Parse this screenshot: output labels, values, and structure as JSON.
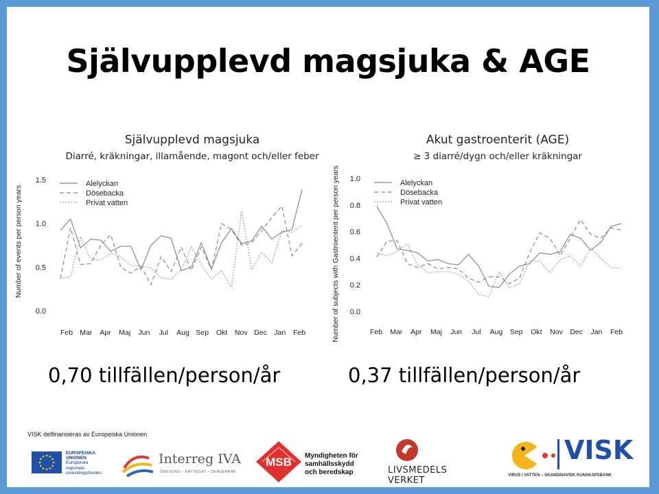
{
  "slide": {
    "title": "Självupplevd magsjuka & AGE",
    "left_result": "0,70 tillfällen/person/år",
    "right_result": "0,37 tillfällen/person/år"
  },
  "colors": {
    "background": "#5b9bd5",
    "series_line": "#888888"
  },
  "chart_data": [
    {
      "type": "line",
      "title": "Självupplevd magsjuka",
      "subtitle": "Diarré, kräkningar, illamående, magont och/eller feber",
      "ylabel": "Number of events per person years",
      "ylim": [
        0,
        1.5
      ],
      "yticks": [
        "0.0",
        "0.5",
        "1.0",
        "1.5"
      ],
      "x_tick_labels": [
        "Feb",
        "Mar",
        "Apr",
        "Maj",
        "Jun",
        "Jul",
        "Aug",
        "Sep",
        "Okt",
        "Nov",
        "Dec",
        "Jan",
        "Feb"
      ],
      "legend_position": "top-left",
      "series": [
        {
          "name": "Alelyckan",
          "style": "solid",
          "values": [
            0.92,
            1.05,
            0.72,
            0.82,
            0.81,
            0.68,
            0.74,
            0.74,
            0.47,
            0.75,
            0.86,
            0.83,
            0.46,
            0.5,
            0.78,
            0.48,
            0.78,
            0.94,
            0.77,
            0.8,
            0.97,
            0.82,
            0.9,
            0.93,
            1.39
          ]
        },
        {
          "name": "Dösebacka",
          "style": "dashed",
          "values": [
            0.37,
            0.95,
            0.53,
            0.54,
            0.75,
            0.87,
            0.5,
            0.43,
            0.51,
            0.3,
            0.62,
            0.45,
            0.73,
            0.46,
            0.73,
            0.47,
            1.0,
            0.93,
            0.75,
            0.78,
            0.92,
            1.07,
            1.2,
            0.63,
            0.77
          ]
        },
        {
          "name": "Privat vatten",
          "style": "dotted",
          "values": [
            0.37,
            0.39,
            0.85,
            0.59,
            0.58,
            0.66,
            0.62,
            0.52,
            0.51,
            0.49,
            0.38,
            0.36,
            0.47,
            0.73,
            0.53,
            0.36,
            0.46,
            0.27,
            1.14,
            0.47,
            0.67,
            0.55,
            0.92,
            0.9,
            0.98
          ]
        }
      ]
    },
    {
      "type": "line",
      "title": "Akut gastroenterit (AGE)",
      "subtitle": "≥ 3 diarré/dygn och/eller kräkningar",
      "ylabel": "Number of subjects with Gastroenterit per person years",
      "ylim": [
        0,
        1.0
      ],
      "yticks": [
        "0.0",
        "0.2",
        "0.4",
        "0.6",
        "0.8",
        "1.0"
      ],
      "x_tick_labels": [
        "Feb",
        "Mar",
        "Apr",
        "Maj",
        "Jun",
        "Jul",
        "Aug",
        "Sep",
        "Okt",
        "Nov",
        "Dec",
        "Jan",
        "Feb"
      ],
      "legend_position": "top-left",
      "series": [
        {
          "name": "Alelyckan",
          "style": "solid",
          "values": [
            0.79,
            0.66,
            0.47,
            0.46,
            0.44,
            0.38,
            0.39,
            0.36,
            0.35,
            0.43,
            0.34,
            0.19,
            0.18,
            0.28,
            0.34,
            0.36,
            0.44,
            0.43,
            0.45,
            0.58,
            0.55,
            0.46,
            0.52,
            0.64,
            0.66
          ]
        },
        {
          "name": "Dösebacka",
          "style": "dashed",
          "values": [
            0.41,
            0.53,
            0.53,
            0.36,
            0.33,
            0.36,
            0.32,
            0.33,
            0.32,
            0.25,
            0.22,
            0.26,
            0.26,
            0.21,
            0.25,
            0.44,
            0.59,
            0.55,
            0.42,
            0.55,
            0.69,
            0.58,
            0.55,
            0.63,
            0.61
          ]
        },
        {
          "name": "Privat vatten",
          "style": "dotted",
          "values": [
            0.44,
            0.42,
            0.45,
            0.51,
            0.35,
            0.29,
            0.3,
            0.3,
            0.28,
            0.23,
            0.13,
            0.11,
            0.3,
            0.18,
            0.21,
            0.38,
            0.38,
            0.29,
            0.39,
            0.42,
            0.34,
            0.48,
            0.4,
            0.33,
            0.32
          ]
        }
      ]
    }
  ],
  "footer": {
    "funding_text": "VISK delfinansieras av Europeiska Unionen",
    "eu": {
      "lines": [
        "EUROPEISKA",
        "UNIONEN",
        "Europeiska",
        "regionala",
        "utvecklingsfonden"
      ]
    },
    "interreg": {
      "name": "Interreg IVA",
      "sub": "ÖRESUND – KATTEGAT – SKAGERRAK"
    },
    "msb": {
      "abbr": "MSB",
      "lines": [
        "Myndigheten för",
        "samhällsskydd",
        "och beredskap"
      ]
    },
    "livsmedelsverket": {
      "lines": [
        "LIVSMEDELS",
        "VERKET"
      ]
    },
    "visk": {
      "name": "VISK",
      "tagline": "VIRUS I VATTEN – SKANDINAVISK KUNSKAPSBANK"
    }
  }
}
